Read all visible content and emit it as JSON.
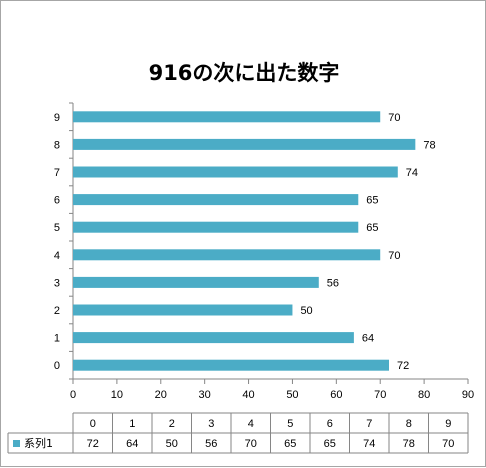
{
  "chart_data": {
    "type": "bar",
    "orientation": "horizontal",
    "title": "916の次に出た数字",
    "categories": [
      "0",
      "1",
      "2",
      "3",
      "4",
      "5",
      "6",
      "7",
      "8",
      "9"
    ],
    "series": [
      {
        "name": "系列1",
        "values": [
          72,
          64,
          50,
          56,
          70,
          65,
          65,
          74,
          78,
          70
        ],
        "color": "#4bacc6"
      }
    ],
    "xlim": [
      0,
      90
    ],
    "x_ticks": [
      0,
      10,
      20,
      30,
      40,
      50,
      60,
      70,
      80,
      90
    ],
    "grid": false,
    "legend": "none",
    "data_labels": true,
    "data_table": true
  }
}
